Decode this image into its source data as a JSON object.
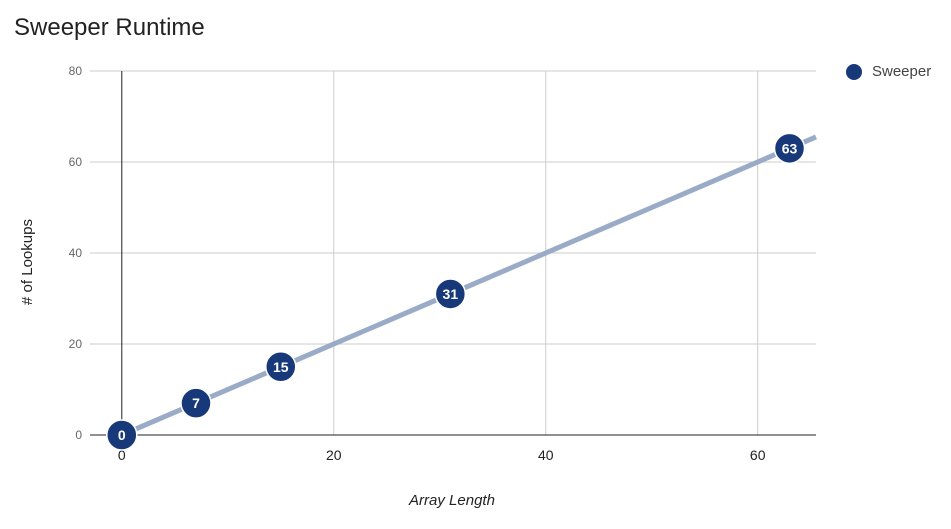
{
  "chart_data": {
    "type": "scatter",
    "title": "Sweeper Runtime",
    "xlabel": "Array Length",
    "ylabel": "# of Lookups",
    "x_ticks": [
      0,
      20,
      40,
      60
    ],
    "y_ticks": [
      0,
      20,
      40,
      60,
      80
    ],
    "xlim": [
      -3,
      65.5
    ],
    "ylim": [
      0,
      80
    ],
    "grid": true,
    "legend_position": "top-right",
    "series": [
      {
        "name": "Sweeper",
        "color": "#17397a",
        "points": [
          {
            "x": 0,
            "y": 0,
            "label": "0"
          },
          {
            "x": 7,
            "y": 7,
            "label": "7"
          },
          {
            "x": 15,
            "y": 15,
            "label": "15"
          },
          {
            "x": 31,
            "y": 31,
            "label": "31"
          },
          {
            "x": 63,
            "y": 63,
            "label": "63"
          }
        ]
      }
    ],
    "trendline": {
      "color": "#9aabc7",
      "slope": 1,
      "intercept": 0
    }
  }
}
